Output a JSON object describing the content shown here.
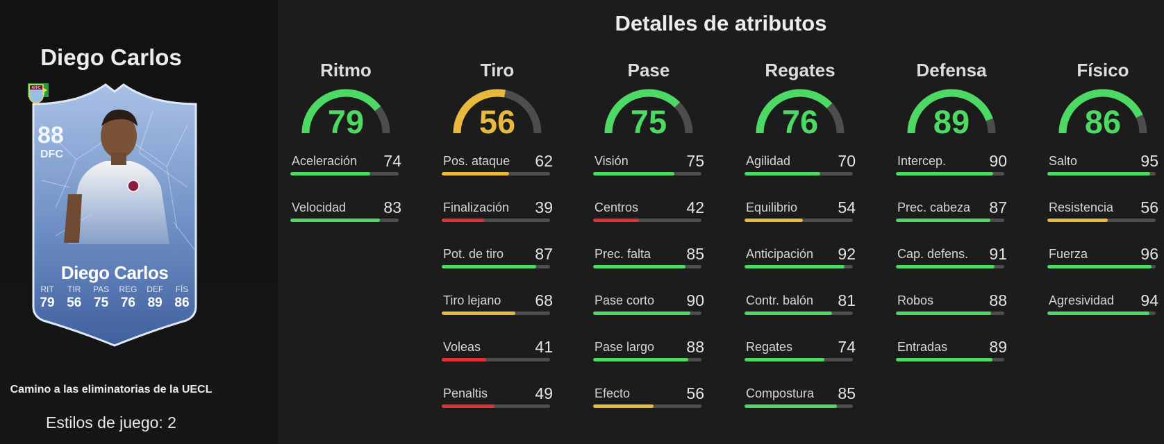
{
  "player": {
    "name": "Diego Carlos",
    "rating": "88",
    "position": "DFC",
    "card_name": "Diego Carlos",
    "card_stats": [
      {
        "label": "RIT",
        "value": "79"
      },
      {
        "label": "TIR",
        "value": "56"
      },
      {
        "label": "PAS",
        "value": "75"
      },
      {
        "label": "REG",
        "value": "76"
      },
      {
        "label": "DEF",
        "value": "89"
      },
      {
        "label": "FÍS",
        "value": "86"
      }
    ],
    "club_badge_text": "AVFC",
    "program": "Camino a las eliminatorias de la UECL",
    "playstyles": "Estilos de juego: 2"
  },
  "colors": {
    "green": "#4cd964",
    "yellow": "#e8b93c",
    "red": "#e0303a",
    "track": "#4d4d4d"
  },
  "details": {
    "title": "Detalles de atributos",
    "categories": [
      {
        "name": "Ritmo",
        "value": 79,
        "attributes": [
          {
            "name": "Aceleración",
            "value": 74
          },
          {
            "name": "Velocidad",
            "value": 83
          }
        ]
      },
      {
        "name": "Tiro",
        "value": 56,
        "attributes": [
          {
            "name": "Pos. ataque",
            "value": 62
          },
          {
            "name": "Finalización",
            "value": 39
          },
          {
            "name": "Pot. de tiro",
            "value": 87
          },
          {
            "name": "Tiro lejano",
            "value": 68
          },
          {
            "name": "Voleas",
            "value": 41
          },
          {
            "name": "Penaltis",
            "value": 49
          }
        ]
      },
      {
        "name": "Pase",
        "value": 75,
        "attributes": [
          {
            "name": "Visión",
            "value": 75
          },
          {
            "name": "Centros",
            "value": 42
          },
          {
            "name": "Prec. falta",
            "value": 85
          },
          {
            "name": "Pase corto",
            "value": 90
          },
          {
            "name": "Pase largo",
            "value": 88
          },
          {
            "name": "Efecto",
            "value": 56
          }
        ]
      },
      {
        "name": "Regates",
        "value": 76,
        "attributes": [
          {
            "name": "Agilidad",
            "value": 70
          },
          {
            "name": "Equilibrio",
            "value": 54
          },
          {
            "name": "Anticipación",
            "value": 92
          },
          {
            "name": "Contr. balón",
            "value": 81
          },
          {
            "name": "Regates",
            "value": 74
          },
          {
            "name": "Compostura",
            "value": 85
          }
        ]
      },
      {
        "name": "Defensa",
        "value": 89,
        "attributes": [
          {
            "name": "Intercep.",
            "value": 90
          },
          {
            "name": "Prec. cabeza",
            "value": 87
          },
          {
            "name": "Cap. defens.",
            "value": 91
          },
          {
            "name": "Robos",
            "value": 88
          },
          {
            "name": "Entradas",
            "value": 89
          }
        ]
      },
      {
        "name": "Físico",
        "value": 86,
        "attributes": [
          {
            "name": "Salto",
            "value": 95
          },
          {
            "name": "Resistencia",
            "value": 56
          },
          {
            "name": "Fuerza",
            "value": 96
          },
          {
            "name": "Agresividad",
            "value": 94
          }
        ]
      }
    ]
  }
}
